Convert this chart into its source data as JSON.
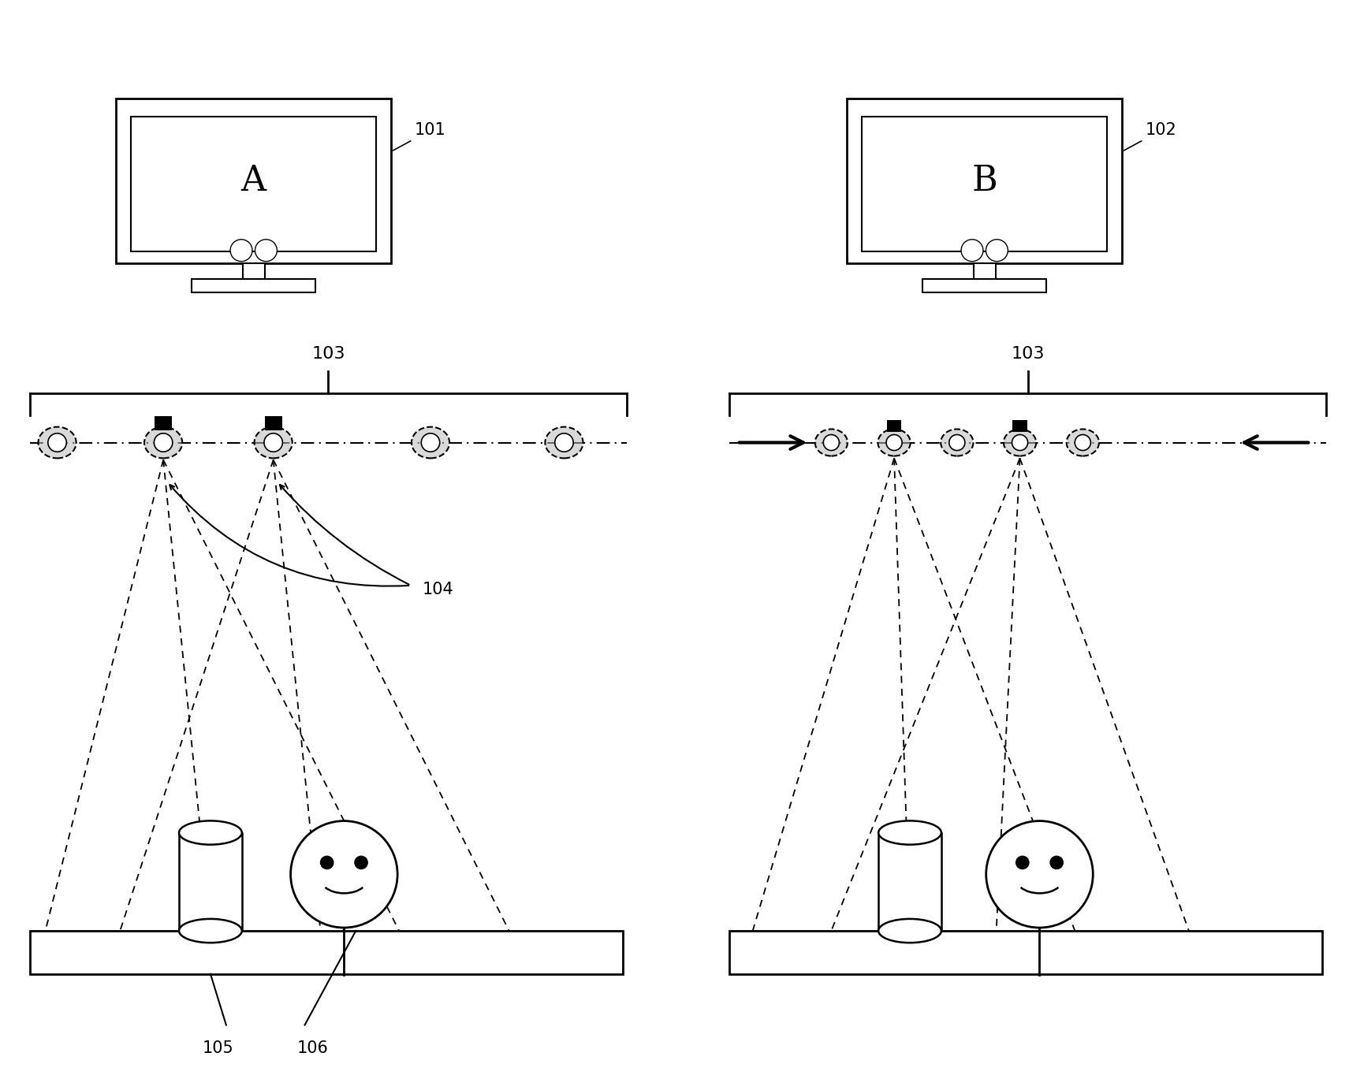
{
  "bg_color": "#ffffff",
  "fig_width": 17.11,
  "fig_height": 13.83,
  "monitor_label_A": "A",
  "monitor_label_B": "B",
  "label_101": "101",
  "label_102": "102",
  "label_103": "103",
  "label_104": "104",
  "label_105": "105",
  "label_106": "106"
}
